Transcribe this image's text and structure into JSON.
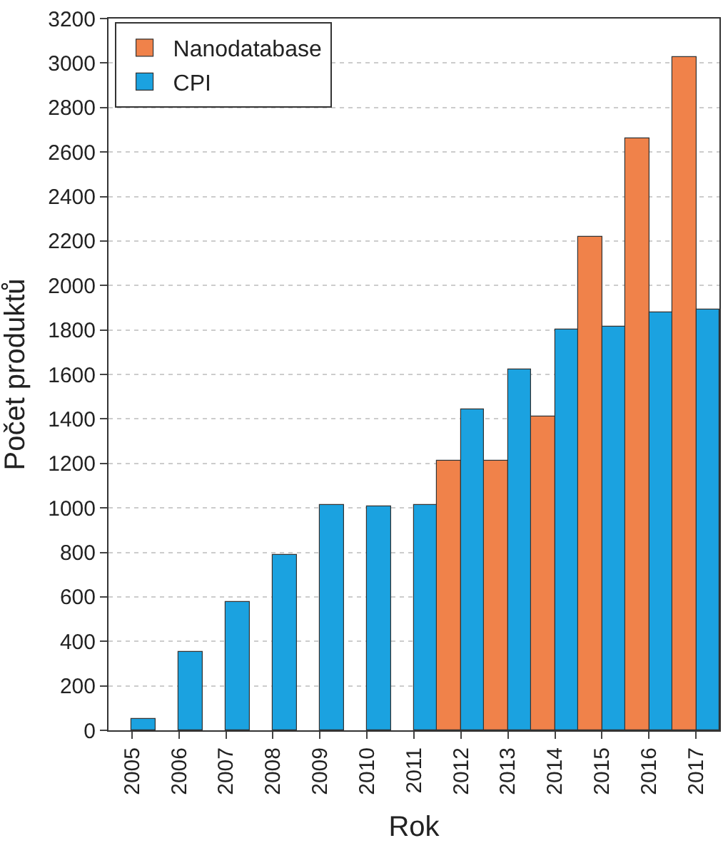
{
  "chart_data": {
    "type": "bar",
    "xlabel": "Rok",
    "ylabel": "Počet produktů",
    "categories": [
      "2005",
      "2006",
      "2007",
      "2008",
      "2009",
      "2010",
      "2011",
      "2012",
      "2013",
      "2014",
      "2015",
      "2016",
      "2017"
    ],
    "series": [
      {
        "name": "Nanodatabase",
        "color": "#f0824a",
        "values": [
          null,
          null,
          null,
          null,
          null,
          null,
          null,
          1210,
          1210,
          1410,
          2220,
          2660,
          3030
        ]
      },
      {
        "name": "CPI",
        "color": "#1ba2e0",
        "values": [
          54,
          355,
          580,
          790,
          1012,
          1010,
          1012,
          1440,
          1620,
          1800,
          1814,
          1880,
          1890
        ]
      }
    ],
    "ylim": [
      0,
      3200
    ],
    "yticks": [
      0,
      200,
      400,
      600,
      800,
      1000,
      1200,
      1400,
      1600,
      1800,
      2000,
      2200,
      2400,
      2600,
      2800,
      3000,
      3200
    ],
    "grid": "y",
    "legend": "top left"
  }
}
